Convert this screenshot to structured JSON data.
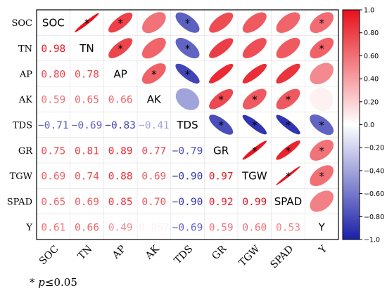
{
  "chart_data": {
    "type": "heatmap",
    "subtype": "correlation-matrix",
    "variables": [
      "SOC",
      "TN",
      "AP",
      "AK",
      "TDS",
      "GR",
      "TGW",
      "SPAD",
      "Y"
    ],
    "matrix": [
      [
        1,
        0.98,
        0.8,
        0.59,
        -0.71,
        0.75,
        0.69,
        0.65,
        0.61
      ],
      [
        0.98,
        1,
        0.78,
        0.65,
        -0.69,
        0.81,
        0.74,
        0.69,
        0.66
      ],
      [
        0.8,
        0.78,
        1,
        0.66,
        -0.83,
        0.89,
        0.88,
        0.85,
        0.49
      ],
      [
        0.59,
        0.65,
        0.66,
        1,
        -0.41,
        0.77,
        0.69,
        0.7,
        0.057
      ],
      [
        -0.71,
        -0.69,
        -0.83,
        -0.41,
        1,
        -0.79,
        -0.9,
        -0.9,
        -0.69
      ],
      [
        0.75,
        0.81,
        0.89,
        0.77,
        -0.79,
        1,
        0.97,
        0.92,
        0.59
      ],
      [
        0.69,
        0.74,
        0.88,
        0.69,
        -0.9,
        0.97,
        1,
        0.99,
        0.6
      ],
      [
        0.65,
        0.69,
        0.85,
        0.7,
        -0.9,
        0.92,
        0.99,
        1,
        0.53
      ],
      [
        0.61,
        0.66,
        0.49,
        0.057,
        -0.69,
        0.59,
        0.6,
        0.53,
        1
      ]
    ],
    "value_labels": [
      [
        "SOC",
        "",
        "",
        "",
        "",
        "",
        "",
        "",
        ""
      ],
      [
        "0.98",
        "TN",
        "",
        "",
        "",
        "",
        "",
        "",
        ""
      ],
      [
        "0.80",
        "0.78",
        "AP",
        "",
        "",
        "",
        "",
        "",
        ""
      ],
      [
        "0.59",
        "0.65",
        "0.66",
        "AK",
        "",
        "",
        "",
        "",
        ""
      ],
      [
        "−0.71",
        "−0.69",
        "−0.83",
        "−0.41",
        "TDS",
        "",
        "",
        "",
        ""
      ],
      [
        "0.75",
        "0.81",
        "0.89",
        "0.77",
        "−0.79",
        "GR",
        "",
        "",
        ""
      ],
      [
        "0.69",
        "0.74",
        "0.88",
        "0.69",
        "−0.90",
        "0.97",
        "TGW",
        "",
        ""
      ],
      [
        "0.65",
        "0.69",
        "0.85",
        "0.70",
        "−0.90",
        "0.92",
        "0.99",
        "SPAD",
        ""
      ],
      [
        "0.61",
        "0.66",
        "0.49",
        "0.057",
        "−0.69",
        "0.59",
        "0.60",
        "0.53",
        "Y"
      ]
    ],
    "significant_mark": "*",
    "significant": [
      [
        "SOC",
        "TN"
      ],
      [
        "SOC",
        "AP"
      ],
      [
        "SOC",
        "TDS"
      ],
      [
        "SOC",
        "Y"
      ],
      [
        "TN",
        "AP"
      ],
      [
        "TN",
        "TDS"
      ],
      [
        "TN",
        "Y"
      ],
      [
        "AP",
        "AK"
      ],
      [
        "AP",
        "TDS"
      ],
      [
        "AK",
        "GR"
      ],
      [
        "AK",
        "TGW"
      ],
      [
        "AK",
        "SPAD"
      ],
      [
        "TDS",
        "GR"
      ],
      [
        "TDS",
        "TGW"
      ],
      [
        "TDS",
        "SPAD"
      ],
      [
        "TDS",
        "Y"
      ],
      [
        "GR",
        "TGW"
      ],
      [
        "GR",
        "SPAD"
      ],
      [
        "GR",
        "Y"
      ],
      [
        "TGW",
        "SPAD"
      ],
      [
        "TGW",
        "Y"
      ]
    ],
    "colorbar": {
      "range": [
        -1.0,
        1.0
      ],
      "ticks": [
        "1.0",
        "0.80",
        "0.60",
        "0.40",
        "0.20",
        "0.0",
        "−0.20",
        "−0.40",
        "−0.60",
        "−0.80",
        "−1.0"
      ],
      "ticks_values": [
        1.0,
        0.8,
        0.6,
        0.4,
        0.2,
        0.0,
        -0.2,
        -0.4,
        -0.6,
        -0.8,
        -1.0
      ],
      "colors": {
        "positive": "#e8101a",
        "neutral": "#ffffff",
        "negative": "#1a1fa8"
      }
    },
    "lower_triangle": "numbers",
    "upper_triangle": "ellipses",
    "grid": true
  },
  "footnote": {
    "star": "* ",
    "p_symbol": "p",
    "threshold": "≤0.05"
  }
}
